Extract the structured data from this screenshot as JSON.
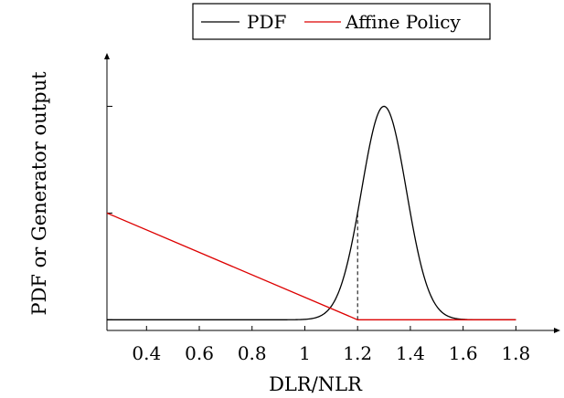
{
  "chart_data": {
    "type": "line",
    "xlabel": "DLR/NLR",
    "ylabel": "PDF or Generator output",
    "xlim": [
      0.25,
      1.92
    ],
    "ylim": [
      -0.05,
      1.25
    ],
    "xticks": [
      0.4,
      0.6,
      0.8,
      1,
      1.2,
      1.4,
      1.6,
      1.8
    ],
    "xtick_labels": [
      "0.4",
      "0.6",
      "0.8",
      "1",
      "1.2",
      "1.4",
      "1.6",
      "1.8"
    ],
    "yticks": [
      0,
      0.5,
      1
    ],
    "legend": {
      "position": "top-center",
      "entries": [
        "PDF",
        "Affine Policy"
      ]
    },
    "series": [
      {
        "name": "PDF",
        "color": "#000000",
        "kind": "gaussian",
        "x_range": [
          0.25,
          1.8
        ],
        "mean": 1.3,
        "std": 0.085,
        "peak": 1.0
      },
      {
        "name": "Affine Policy",
        "color": "#dd0000",
        "kind": "piecewise-linear",
        "x": [
          0.25,
          1.2,
          1.8
        ],
        "y": [
          0.5,
          0.0,
          0.0
        ]
      }
    ],
    "annotations": [
      {
        "type": "dashed-vertical",
        "x": 1.2,
        "y_from": 0.0,
        "y_to": 0.5
      }
    ]
  }
}
